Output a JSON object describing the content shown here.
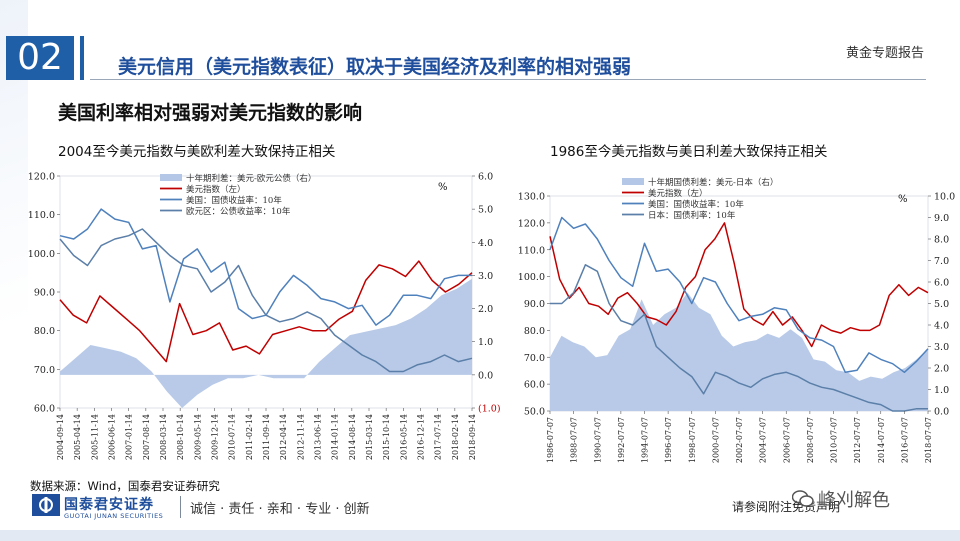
{
  "header": {
    "section_number": "02",
    "title": "美元信用（美元指数表征）取决于美国经济及利率的相对强弱",
    "report_tag": "黄金专题报告",
    "subtitle": "美国利率相对强弱对美元指数的影响"
  },
  "colors": {
    "accent": "#1f5fa8",
    "area": "#b4c7e7",
    "red": "#c00000",
    "blue": "#4f81bd",
    "steel": "#5b7fa8"
  },
  "chart_data": [
    {
      "type": "line",
      "title": "2004至今美元指数与美欧利差大致保持正相关",
      "unit_label": "%",
      "y_left_ticks": [
        "120.0",
        "110.0",
        "100.0",
        "90.0",
        "80.0",
        "70.0",
        "60.0"
      ],
      "ylim_left": [
        60,
        120
      ],
      "y_right_ticks": [
        "6.0",
        "5.0",
        "4.0",
        "3.0",
        "2.0",
        "1.0",
        "0.0",
        "(1.0)"
      ],
      "ylim_right": [
        -1,
        6
      ],
      "x_ticks": [
        "2004-09-14",
        "2005-04-14",
        "2005-11-14",
        "2006-06-14",
        "2007-01-14",
        "2007-08-14",
        "2008-03-14",
        "2008-10-14",
        "2009-05-14",
        "2009-12-14",
        "2010-07-14",
        "2011-02-14",
        "2011-09-14",
        "2012-04-14",
        "2012-11-14",
        "2013-06-14",
        "2014-01-14",
        "2014-08-14",
        "2015-03-14",
        "2015-10-14",
        "2016-05-14",
        "2016-12-14",
        "2017-07-14",
        "2018-02-14",
        "2018-09-14"
      ],
      "legend": [
        "十年期利差：美元-欧元公债（右）",
        "美元指数（左）",
        "美国：国债收益率：10年",
        "欧元区：公债收益率：10年"
      ],
      "series": [
        {
          "name": "十年期利差：美元-欧元公债（右）",
          "axis": "right",
          "kind": "area",
          "color": "#b4c7e7",
          "values": [
            0.1,
            0.5,
            0.9,
            0.8,
            0.7,
            0.5,
            0.1,
            -0.5,
            -1.0,
            -0.6,
            -0.3,
            -0.1,
            -0.1,
            0.0,
            -0.1,
            -0.1,
            -0.1,
            0.4,
            0.8,
            1.2,
            1.3,
            1.4,
            1.5,
            1.7,
            2.0,
            2.4,
            2.6,
            2.9
          ]
        },
        {
          "name": "美元指数（左）",
          "axis": "left",
          "kind": "line",
          "color": "#c00000",
          "values": [
            88,
            84,
            82,
            89,
            86,
            83,
            80,
            76,
            72,
            87,
            79,
            80,
            82,
            75,
            76,
            74,
            79,
            80,
            81,
            80,
            80,
            83,
            85,
            93,
            97,
            96,
            94,
            98,
            93,
            90,
            92,
            95
          ]
        },
        {
          "name": "美国：国债收益率：10年",
          "axis": "right",
          "kind": "line",
          "color": "#4f81bd",
          "values": [
            4.2,
            4.1,
            4.4,
            5.0,
            4.7,
            4.6,
            3.8,
            3.9,
            2.2,
            3.5,
            3.8,
            3.1,
            3.4,
            2.0,
            1.7,
            1.8,
            2.5,
            3.0,
            2.7,
            2.3,
            2.2,
            2.0,
            2.1,
            1.5,
            1.8,
            2.4,
            2.4,
            2.3,
            2.9,
            3.0,
            3.0
          ]
        },
        {
          "name": "欧元区：公债收益率：10年",
          "axis": "right",
          "kind": "line",
          "color": "#5b7fa8",
          "values": [
            4.1,
            3.6,
            3.3,
            3.9,
            4.1,
            4.2,
            4.4,
            4.0,
            3.6,
            3.3,
            3.2,
            2.5,
            2.8,
            3.3,
            2.4,
            1.8,
            1.6,
            1.7,
            1.9,
            1.7,
            1.2,
            0.9,
            0.6,
            0.4,
            0.1,
            0.1,
            0.3,
            0.4,
            0.6,
            0.4,
            0.5
          ]
        }
      ]
    },
    {
      "type": "line",
      "title": "1986至今美元指数与美日利差大致保持正相关",
      "unit_label": "%",
      "y_left_ticks": [
        "130.0",
        "120.0",
        "110.0",
        "100.0",
        "90.0",
        "80.0",
        "70.0",
        "60.0",
        "50.0"
      ],
      "ylim_left": [
        50,
        130
      ],
      "y_right_ticks": [
        "10.0",
        "9.0",
        "8.0",
        "7.0",
        "6.0",
        "5.0",
        "4.0",
        "3.0",
        "2.0",
        "1.0",
        "0.0"
      ],
      "ylim_right": [
        0,
        10
      ],
      "x_ticks": [
        "1986-07-07",
        "1988-07-07",
        "1990-07-07",
        "1992-07-07",
        "1994-07-07",
        "1996-07-07",
        "1998-07-07",
        "2000-07-07",
        "2002-07-07",
        "2004-07-07",
        "2006-07-07",
        "2008-07-07",
        "2010-07-07",
        "2012-07-07",
        "2014-07-07",
        "2016-07-07",
        "2018-07-07"
      ],
      "legend": [
        "十年期国债利差：美元-日本（右）",
        "美元指数（左）",
        "美国：国债收益率：10年",
        "日本：国债利率：10年"
      ],
      "series": [
        {
          "name": "十年期国债利差：美元-日本（右）",
          "axis": "right",
          "kind": "area",
          "color": "#b4c7e7",
          "values": [
            2.5,
            3.5,
            3.2,
            3.0,
            2.5,
            2.6,
            3.5,
            3.8,
            5.2,
            4.0,
            4.5,
            4.8,
            5.5,
            4.8,
            4.5,
            3.5,
            3.0,
            3.2,
            3.3,
            3.6,
            3.4,
            3.8,
            3.4,
            2.4,
            2.3,
            1.9,
            1.8,
            1.4,
            1.6,
            1.5,
            1.8,
            2.0,
            2.4,
            2.9
          ]
        },
        {
          "name": "美元指数（左）",
          "axis": "left",
          "kind": "line",
          "color": "#c00000",
          "values": [
            115,
            99,
            92,
            96,
            90,
            89,
            86,
            92,
            94,
            90,
            85,
            84,
            82,
            87,
            96,
            100,
            110,
            114,
            120,
            105,
            88,
            84,
            82,
            87,
            82,
            85,
            80,
            74,
            82,
            80,
            79,
            81,
            80,
            80,
            82,
            93,
            97,
            93,
            96,
            94
          ]
        },
        {
          "name": "美国：国债收益率：10年",
          "axis": "right",
          "kind": "line",
          "color": "#4f81bd",
          "values": [
            7.5,
            9.0,
            8.5,
            8.7,
            8.0,
            7.0,
            6.2,
            5.8,
            7.8,
            6.5,
            6.6,
            6.0,
            5.0,
            6.2,
            6.0,
            5.0,
            4.2,
            4.4,
            4.5,
            4.8,
            4.7,
            3.8,
            3.4,
            3.3,
            3.0,
            1.8,
            1.9,
            2.7,
            2.4,
            2.2,
            1.8,
            2.3,
            2.9
          ]
        },
        {
          "name": "日本：国债利率：10年",
          "axis": "right",
          "kind": "line",
          "color": "#5b7fa8",
          "values": [
            5.0,
            5.0,
            5.5,
            6.8,
            6.5,
            5.0,
            4.2,
            4.0,
            4.5,
            3.0,
            2.5,
            2.0,
            1.6,
            0.8,
            1.8,
            1.6,
            1.3,
            1.1,
            1.5,
            1.7,
            1.8,
            1.6,
            1.3,
            1.1,
            1.0,
            0.8,
            0.6,
            0.4,
            0.3,
            0.0,
            0.0,
            0.1,
            0.1
          ]
        }
      ]
    }
  ],
  "footer": {
    "source": "数据来源：Wind，国泰君安证券研究",
    "brand_cn": "国泰君安证券",
    "brand_en": "GUOTAI JUNAN SECURITIES",
    "slogan": "诚信 · 责任 · 亲和 · 专业 · 创新",
    "disclaimer": "请参阅附注免责声明",
    "watermark": "峰刈解色"
  }
}
